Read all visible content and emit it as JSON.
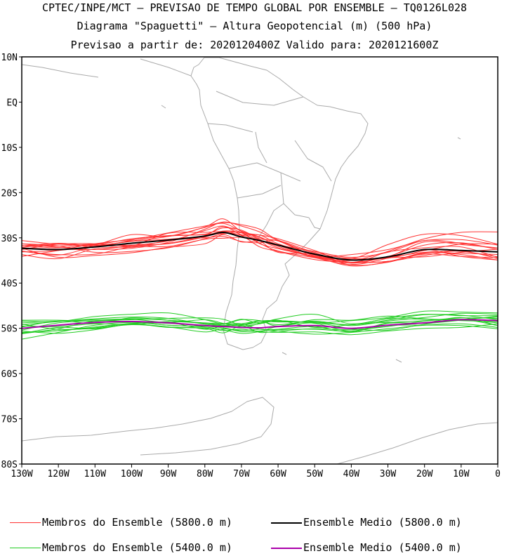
{
  "header": {
    "line1": "CPTEC/INPE/MCT — PREVISAO DE TEMPO GLOBAL POR ENSEMBLE — TQ0126L028",
    "line2": "Diagrama \"Spaguetti\" — Altura Geopotencial (m) (500 hPa)",
    "line3": "Previsao a partir de: 2020120400Z  Valido para: 2020121600Z"
  },
  "legend": [
    {
      "label": "Membros do Ensemble (5800.0 m)",
      "color": "#ff3333"
    },
    {
      "label": "Ensemble Medio (5800.0 m)",
      "color": "#000000"
    },
    {
      "label": "Membros do Ensemble (5400.0 m)",
      "color": "#22cc22"
    },
    {
      "label": "Ensemble Medio (5400.0 m)",
      "color": "#aa00aa"
    }
  ],
  "chart_data": {
    "type": "line",
    "title": "Diagrama \"Spaguetti\" — Altura Geopotencial (m) (500 hPa)",
    "x_domain": [
      -130,
      0
    ],
    "y_domain": [
      -80,
      10
    ],
    "x_ticks": [
      {
        "v": -130,
        "label": "130W"
      },
      {
        "v": -120,
        "label": "120W"
      },
      {
        "v": -110,
        "label": "110W"
      },
      {
        "v": -100,
        "label": "100W"
      },
      {
        "v": -90,
        "label": "90W"
      },
      {
        "v": -80,
        "label": "80W"
      },
      {
        "v": -70,
        "label": "70W"
      },
      {
        "v": -60,
        "label": "60W"
      },
      {
        "v": -50,
        "label": "50W"
      },
      {
        "v": -40,
        "label": "40W"
      },
      {
        "v": -30,
        "label": "30W"
      },
      {
        "v": -20,
        "label": "20W"
      },
      {
        "v": -10,
        "label": "10W"
      },
      {
        "v": 0,
        "label": "0"
      }
    ],
    "y_ticks": [
      {
        "v": 10,
        "label": "10N"
      },
      {
        "v": 0,
        "label": "EQ"
      },
      {
        "v": -10,
        "label": "10S"
      },
      {
        "v": -20,
        "label": "20S"
      },
      {
        "v": -30,
        "label": "30S"
      },
      {
        "v": -40,
        "label": "40S"
      },
      {
        "v": -50,
        "label": "50S"
      },
      {
        "v": -60,
        "label": "60S"
      },
      {
        "v": -70,
        "label": "70S"
      },
      {
        "v": -80,
        "label": "80S"
      }
    ],
    "x_lon": [
      -130,
      -120,
      -110,
      -100,
      -90,
      -80,
      -75,
      -70,
      -65,
      -60,
      -50,
      -40,
      -30,
      -20,
      -10,
      0
    ],
    "series": [
      {
        "name": "Ensemble Medio (5800.0 m)",
        "color": "#000000",
        "width": 2,
        "lat": [
          -32.3,
          -32.6,
          -32.0,
          -31.2,
          -30.5,
          -29.6,
          -28.8,
          -29.8,
          -30.6,
          -31.6,
          -33.6,
          -34.9,
          -34.2,
          -32.6,
          -32.8,
          -33.1
        ]
      },
      {
        "name": "Ensemble Medio (5400.0 m)",
        "color": "#aa00aa",
        "width": 2,
        "lat": [
          -50.0,
          -49.3,
          -48.7,
          -48.5,
          -48.8,
          -49.4,
          -49.6,
          -49.8,
          -49.9,
          -49.6,
          -49.4,
          -50.0,
          -49.3,
          -48.8,
          -48.1,
          -48.3
        ]
      },
      {
        "name": "Membros do Ensemble (5800.0 m)",
        "color": "#ff3333",
        "width": 1,
        "lat": [
          -31.8,
          -31.2,
          -31.7,
          -30.7,
          -29.7,
          -27.7,
          -26.8,
          -28.5,
          -29.8,
          -31.5,
          -33.0,
          -34.3,
          -33.2,
          -30.6,
          -31.2,
          -32.5
        ]
      },
      {
        "name": "Membros do Ensemble (5800.0 m)",
        "color": "#ff3333",
        "width": 1,
        "lat": [
          -31.3,
          -32.1,
          -32.6,
          -31.7,
          -31.3,
          -29.8,
          -28.5,
          -28.9,
          -30.4,
          -32.2,
          -34.1,
          -35.6,
          -34.1,
          -31.6,
          -31.1,
          -32.6
        ]
      },
      {
        "name": "Membros do Ensemble (5800.0 m)",
        "color": "#ff3333",
        "width": 1,
        "lat": [
          -32.6,
          -31.4,
          -31.3,
          -31.8,
          -31.2,
          -29.5,
          -27.5,
          -29.3,
          -29.4,
          -31.3,
          -33.8,
          -35.4,
          -35.2,
          -33.9,
          -32.9,
          -34.6
        ]
      },
      {
        "name": "Membros do Ensemble (5800.0 m)",
        "color": "#ff3333",
        "width": 1,
        "lat": [
          -31.7,
          -32.2,
          -31.6,
          -32.1,
          -30.6,
          -30.0,
          -29.7,
          -30.8,
          -31.1,
          -30.6,
          -33.2,
          -34.6,
          -34.3,
          -33.2,
          -33.0,
          -34.2
        ]
      },
      {
        "name": "Membros do Ensemble (5800.0 m)",
        "color": "#ff3333",
        "width": 1,
        "lat": [
          -33.0,
          -33.7,
          -33.6,
          -32.0,
          -31.9,
          -30.3,
          -30.1,
          -29.9,
          -30.7,
          -33.2,
          -33.6,
          -36.0,
          -35.4,
          -33.4,
          -33.4,
          -33.7
        ]
      },
      {
        "name": "Membros do Ensemble (5800.0 m)",
        "color": "#ff3333",
        "width": 1,
        "lat": [
          -30.6,
          -31.4,
          -31.5,
          -30.2,
          -29.5,
          -29.2,
          -27.8,
          -28.3,
          -30.2,
          -30.7,
          -34.0,
          -35.0,
          -33.1,
          -32.2,
          -32.0,
          -34.3
        ]
      },
      {
        "name": "Membros do Ensemble (5800.0 m)",
        "color": "#ff3333",
        "width": 1,
        "lat": [
          -31.7,
          -31.8,
          -31.4,
          -31.6,
          -30.7,
          -28.4,
          -27.4,
          -28.8,
          -29.4,
          -30.2,
          -32.8,
          -35.4,
          -33.0,
          -30.2,
          -28.8,
          -28.7
        ]
      },
      {
        "name": "Membros do Ensemble (5800.0 m)",
        "color": "#ff3333",
        "width": 1,
        "lat": [
          -33.7,
          -34.6,
          -32.4,
          -31.8,
          -29.0,
          -28.8,
          -28.6,
          -28.9,
          -31.3,
          -32.4,
          -34.2,
          -36.2,
          -35.3,
          -33.3,
          -33.7,
          -34.9
        ]
      },
      {
        "name": "Membros do Ensemble (5800.0 m)",
        "color": "#ff3333",
        "width": 1,
        "lat": [
          -31.3,
          -31.8,
          -33.2,
          -33.0,
          -32.2,
          -30.2,
          -29.1,
          -28.9,
          -31.2,
          -32.9,
          -34.4,
          -35.9,
          -34.5,
          -32.6,
          -34.1,
          -34.9
        ]
      },
      {
        "name": "Membros do Ensemble (5800.0 m)",
        "color": "#ff3333",
        "width": 1,
        "lat": [
          -34.1,
          -32.8,
          -31.3,
          -30.4,
          -29.6,
          -29.3,
          -28.7,
          -29.4,
          -30.5,
          -31.9,
          -34.3,
          -34.6,
          -34.5,
          -32.8,
          -31.4,
          -31.4
        ]
      },
      {
        "name": "Membros do Ensemble (5800.0 m)",
        "color": "#ff3333",
        "width": 1,
        "lat": [
          -32.2,
          -32.5,
          -32.6,
          -32.3,
          -31.0,
          -28.1,
          -26.5,
          -27.4,
          -28.7,
          -30.6,
          -33.8,
          -34.8,
          -34.2,
          -30.9,
          -31.5,
          -32.2
        ]
      },
      {
        "name": "Membros do Ensemble (5800.0 m)",
        "color": "#ff3333",
        "width": 1,
        "lat": [
          -32.1,
          -31.4,
          -31.9,
          -30.5,
          -28.9,
          -27.4,
          -26.6,
          -27.1,
          -28.1,
          -30.5,
          -33.4,
          -34.6,
          -31.5,
          -29.2,
          -29.5,
          -31.4
        ]
      },
      {
        "name": "Membros do Ensemble (5800.0 m)",
        "color": "#ff3333",
        "width": 1,
        "lat": [
          -32.3,
          -34.3,
          -33.9,
          -33.3,
          -32.1,
          -31.3,
          -29.3,
          -30.9,
          -30.7,
          -31.6,
          -34.2,
          -35.4,
          -34.4,
          -34.2,
          -33.2,
          -32.5
        ]
      },
      {
        "name": "Membros do Ensemble (5800.0 m)",
        "color": "#ff3333",
        "width": 1,
        "lat": [
          -33.1,
          -32.8,
          -31.6,
          -29.3,
          -29.7,
          -27.6,
          -25.8,
          -28.6,
          -29.9,
          -31.6,
          -34.1,
          -33.7,
          -32.6,
          -30.6,
          -30.4,
          -31.6
        ]
      },
      {
        "name": "Membros do Ensemble (5800.0 m)",
        "color": "#ff3333",
        "width": 1,
        "lat": [
          -32.9,
          -33.8,
          -31.9,
          -30.8,
          -30.3,
          -29.6,
          -29.0,
          -29.5,
          -32.0,
          -33.0,
          -34.8,
          -35.4,
          -35.2,
          -33.6,
          -34.1,
          -34.4
        ]
      },
      {
        "name": "Membros do Ensemble (5400.0 m)",
        "color": "#22cc22",
        "width": 1,
        "lat": [
          -49.7,
          -48.4,
          -48.9,
          -47.7,
          -48.2,
          -48.8,
          -49.0,
          -49.3,
          -48.7,
          -48.5,
          -48.7,
          -49.2,
          -47.9,
          -48.0,
          -48.0,
          -47.5
        ]
      },
      {
        "name": "Membros do Ensemble (5400.0 m)",
        "color": "#22cc22",
        "width": 1,
        "lat": [
          -51.2,
          -50.1,
          -48.4,
          -48.6,
          -49.3,
          -49.5,
          -49.1,
          -49.0,
          -50.2,
          -50.2,
          -49.6,
          -50.8,
          -48.9,
          -48.8,
          -47.6,
          -49.4
        ]
      },
      {
        "name": "Membros do Ensemble (5400.0 m)",
        "color": "#22cc22",
        "width": 1,
        "lat": [
          -48.8,
          -48.4,
          -48.1,
          -48.0,
          -48.7,
          -48.1,
          -48.9,
          -49.5,
          -49.0,
          -48.2,
          -49.8,
          -49.2,
          -48.7,
          -48.9,
          -48.2,
          -47.3
        ]
      },
      {
        "name": "Membros do Ensemble (5400.0 m)",
        "color": "#22cc22",
        "width": 1,
        "lat": [
          -50.6,
          -51.1,
          -50.3,
          -49.1,
          -49.8,
          -50.0,
          -51.0,
          -49.5,
          -50.9,
          -50.6,
          -50.1,
          -50.3,
          -49.6,
          -48.4,
          -48.0,
          -49.4
        ]
      },
      {
        "name": "Membros do Ensemble (5400.0 m)",
        "color": "#22cc22",
        "width": 1,
        "lat": [
          -49.2,
          -48.5,
          -47.9,
          -47.5,
          -47.8,
          -49.1,
          -49.4,
          -49.9,
          -48.9,
          -47.9,
          -46.9,
          -49.0,
          -47.8,
          -46.9,
          -47.2,
          -47.2
        ]
      },
      {
        "name": "Membros do Ensemble (5400.0 m)",
        "color": "#22cc22",
        "width": 1,
        "lat": [
          -51.2,
          -49.8,
          -50.1,
          -49.0,
          -48.7,
          -50.2,
          -49.4,
          -49.0,
          -48.4,
          -48.3,
          -48.9,
          -50.6,
          -48.8,
          -48.3,
          -47.7,
          -47.8
        ]
      },
      {
        "name": "Membros do Ensemble (5400.0 m)",
        "color": "#22cc22",
        "width": 1,
        "lat": [
          -52.4,
          -50.9,
          -49.3,
          -48.7,
          -49.3,
          -49.7,
          -50.3,
          -51.1,
          -50.7,
          -49.6,
          -48.8,
          -50.1,
          -50.4,
          -49.1,
          -48.2,
          -48.8
        ]
      },
      {
        "name": "Membros do Ensemble (5400.0 m)",
        "color": "#22cc22",
        "width": 1,
        "lat": [
          -48.4,
          -48.5,
          -47.4,
          -46.9,
          -46.6,
          -48.1,
          -49.0,
          -48.0,
          -48.9,
          -48.3,
          -48.8,
          -48.3,
          -47.6,
          -46.2,
          -46.4,
          -46.6
        ]
      },
      {
        "name": "Membros do Ensemble (5400.0 m)",
        "color": "#22cc22",
        "width": 1,
        "lat": [
          -51.0,
          -50.5,
          -49.9,
          -49.0,
          -49.7,
          -49.9,
          -50.5,
          -50.2,
          -50.7,
          -50.9,
          -50.8,
          -51.4,
          -50.6,
          -50.0,
          -49.8,
          -49.0
        ]
      },
      {
        "name": "Membros do Ensemble (5400.0 m)",
        "color": "#22cc22",
        "width": 1,
        "lat": [
          -48.2,
          -48.2,
          -48.4,
          -47.9,
          -48.2,
          -48.9,
          -49.1,
          -48.1,
          -48.3,
          -49.2,
          -48.4,
          -49.4,
          -48.4,
          -47.6,
          -46.7,
          -46.9
        ]
      },
      {
        "name": "Membros do Ensemble (5400.0 m)",
        "color": "#22cc22",
        "width": 1,
        "lat": [
          -49.1,
          -50.2,
          -50.0,
          -49.2,
          -49.7,
          -50.8,
          -50.1,
          -50.7,
          -50.6,
          -50.3,
          -50.2,
          -50.6,
          -49.4,
          -49.3,
          -49.4,
          -50.1
        ]
      },
      {
        "name": "Membros do Ensemble (5400.0 m)",
        "color": "#22cc22",
        "width": 1,
        "lat": [
          -50.4,
          -48.8,
          -48.3,
          -48.1,
          -47.8,
          -47.7,
          -48.0,
          -49.2,
          -48.4,
          -48.6,
          -48.6,
          -49.2,
          -48.2,
          -47.0,
          -47.1,
          -48.1
        ]
      },
      {
        "name": "Membros do Ensemble (5400.0 m)",
        "color": "#22cc22",
        "width": 1,
        "lat": [
          -49.5,
          -49.6,
          -49.0,
          -49.2,
          -48.5,
          -48.9,
          -49.4,
          -49.3,
          -48.3,
          -49.5,
          -48.1,
          -48.2,
          -47.3,
          -47.9,
          -48.3,
          -48.5
        ]
      },
      {
        "name": "Membros do Ensemble (5400.0 m)",
        "color": "#22cc22",
        "width": 1,
        "lat": [
          -50.9,
          -50.5,
          -49.7,
          -48.9,
          -48.9,
          -49.5,
          -49.9,
          -50.5,
          -50.2,
          -50.6,
          -51.3,
          -50.9,
          -50.1,
          -49.3,
          -49.0,
          -49.8
        ]
      }
    ]
  }
}
